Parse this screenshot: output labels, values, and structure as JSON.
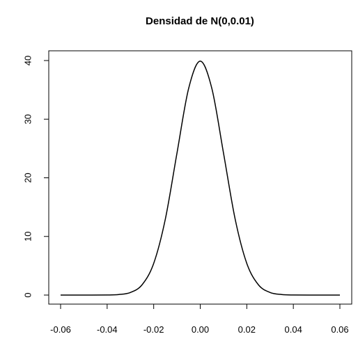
{
  "chart_data": {
    "type": "line",
    "title": "Densidad de N(0,0.01)",
    "xlabel": "",
    "ylabel": "",
    "xlim": [
      -0.06,
      0.06
    ],
    "ylim": [
      0,
      40
    ],
    "x_ticks": [
      -0.06,
      -0.04,
      -0.02,
      0.0,
      0.02,
      0.04,
      0.06
    ],
    "x_tick_labels": [
      "-0.06",
      "-0.04",
      "-0.02",
      "0.00",
      "0.02",
      "0.04",
      "0.06"
    ],
    "y_ticks": [
      0,
      10,
      20,
      30,
      40
    ],
    "y_tick_labels": [
      "0",
      "10",
      "20",
      "30",
      "40"
    ],
    "grid": false,
    "legend": "none",
    "line_color": "#000000",
    "series": [
      {
        "x": [
          -0.06,
          -0.05,
          -0.04,
          -0.035,
          -0.03,
          -0.025,
          -0.02,
          -0.015,
          -0.01,
          -0.005,
          0.0,
          0.005,
          0.01,
          0.015,
          0.02,
          0.025,
          0.03,
          0.035,
          0.04,
          0.05,
          0.06
        ],
        "values": [
          0.0,
          0.0,
          0.01,
          0.09,
          0.44,
          1.75,
          5.4,
          12.95,
          24.2,
          35.21,
          39.89,
          35.21,
          24.2,
          12.95,
          5.4,
          1.75,
          0.44,
          0.09,
          0.01,
          0.0,
          0.0
        ]
      }
    ]
  }
}
